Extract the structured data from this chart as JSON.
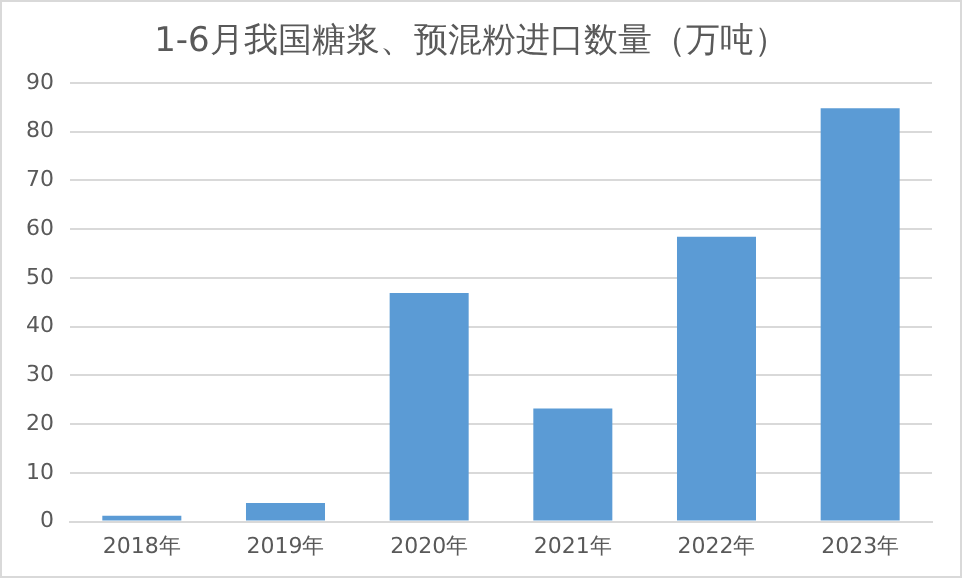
{
  "chart_data": {
    "type": "bar",
    "title": "1-6月我国糖浆、预混粉进口数量（万吨）",
    "categories": [
      "2018年",
      "2019年",
      "2020年",
      "2021年",
      "2022年",
      "2023年"
    ],
    "values": [
      1.2,
      3.8,
      46.9,
      23.2,
      58.4,
      84.8
    ],
    "color": "#5b9bd5",
    "ylim": [
      0,
      90
    ],
    "yticks": [
      0,
      10,
      20,
      30,
      40,
      50,
      60,
      70,
      80,
      90
    ],
    "grid": "y"
  }
}
